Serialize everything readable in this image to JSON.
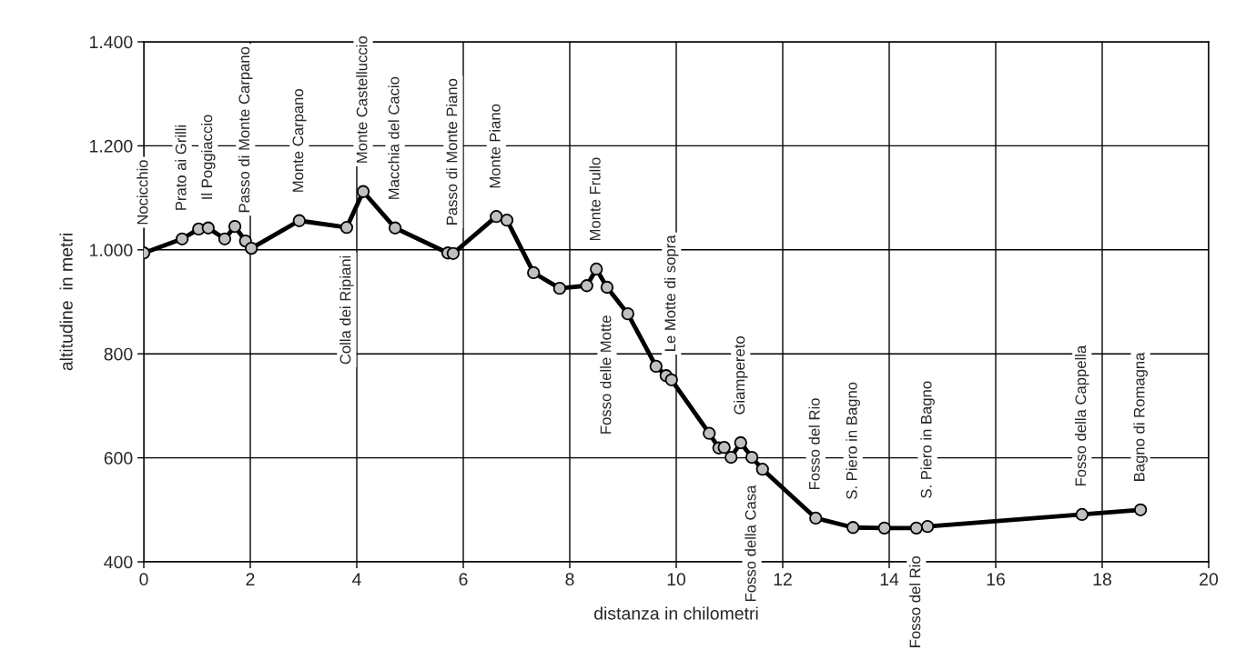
{
  "chart_data": {
    "type": "line",
    "xlabel": "distanza in chilometri",
    "ylabel": "altitudine  in metri",
    "x": [
      0,
      0.72,
      1.03,
      1.21,
      1.52,
      1.71,
      1.91,
      2.02,
      2.92,
      3.81,
      4.12,
      4.72,
      5.71,
      5.81,
      6.62,
      6.82,
      7.32,
      7.81,
      8.32,
      8.5,
      8.7,
      9.09,
      9.62,
      9.81,
      9.91,
      10.62,
      10.8,
      10.9,
      11.03,
      11.21,
      11.42,
      11.62,
      12.62,
      13.32,
      13.91,
      14.51,
      14.72,
      17.62,
      18.72
    ],
    "series": [
      {
        "color": "#000000",
        "values": [
          994,
          1021,
          1040,
          1042,
          1021,
          1045,
          1017,
          1003,
          1056,
          1043,
          1112,
          1042,
          994,
          993,
          1064,
          1057,
          956,
          926,
          931,
          963,
          928,
          877,
          776,
          758,
          750,
          647,
          619,
          620,
          601,
          629,
          601,
          578,
          484,
          466,
          465,
          465,
          468,
          491,
          500
        ]
      }
    ],
    "xlim": [
      0,
      20
    ],
    "xticks": [
      0,
      2,
      4,
      6,
      8,
      10,
      12,
      14,
      16,
      18,
      20
    ],
    "ylim": [
      400,
      1400
    ],
    "yticks": [
      {
        "value": 400,
        "label": "400"
      },
      {
        "value": 600,
        "label": "600"
      },
      {
        "value": 800,
        "label": "800"
      },
      {
        "value": 1000,
        "label": "1.000"
      },
      {
        "value": 1200,
        "label": "1.200"
      },
      {
        "value": 1400,
        "label": "1.400"
      }
    ],
    "grid": true,
    "marker": "circle",
    "line_style": "solid",
    "legend": false,
    "annotations": [
      {
        "text": "Nocicchio",
        "x": 0,
        "y": 994
      },
      {
        "text": "Prato ai Grilli",
        "x": 0.72,
        "y": 1021
      },
      {
        "text": "Il Poggiaccio",
        "x": 1.21,
        "y": 1042
      },
      {
        "text": "Passo di Monte Carpano",
        "x": 1.91,
        "y": 1017
      },
      {
        "text": "Monte Carpano",
        "x": 2.92,
        "y": 1056
      },
      {
        "text": "Colla dei Ripiani",
        "x": 3.81,
        "y": 1043
      },
      {
        "text": "Monte Castelluccio",
        "x": 4.12,
        "y": 1112
      },
      {
        "text": "Macchia del Cacio",
        "x": 4.72,
        "y": 1042
      },
      {
        "text": "Passo di Monte Piano",
        "x": 5.81,
        "y": 993
      },
      {
        "text": "Monte Piano",
        "x": 6.62,
        "y": 1064
      },
      {
        "text": "Monte Frullo",
        "x": 8.5,
        "y": 963
      },
      {
        "text": "Fosso delle Motte",
        "x": 8.7,
        "y": 928
      },
      {
        "text": "Le Motte di sopra",
        "x": 9.91,
        "y": 750
      },
      {
        "text": "Giampereto",
        "x": 11.21,
        "y": 629
      },
      {
        "text": "Fosso della Casa",
        "x": 11.42,
        "y": 601
      },
      {
        "text": "Fosso del Rio",
        "x": 12.62,
        "y": 484
      },
      {
        "text": "S. Piero in Bagno",
        "x": 13.32,
        "y": 466
      },
      {
        "text": "Fosso del Rio",
        "x": 14.51,
        "y": 465
      },
      {
        "text": "S. Piero in Bagno",
        "x": 14.72,
        "y": 468
      },
      {
        "text": "Fosso della Cappella",
        "x": 17.62,
        "y": 491
      },
      {
        "text": "Bagno di Romagna",
        "x": 18.72,
        "y": 500
      }
    ]
  }
}
